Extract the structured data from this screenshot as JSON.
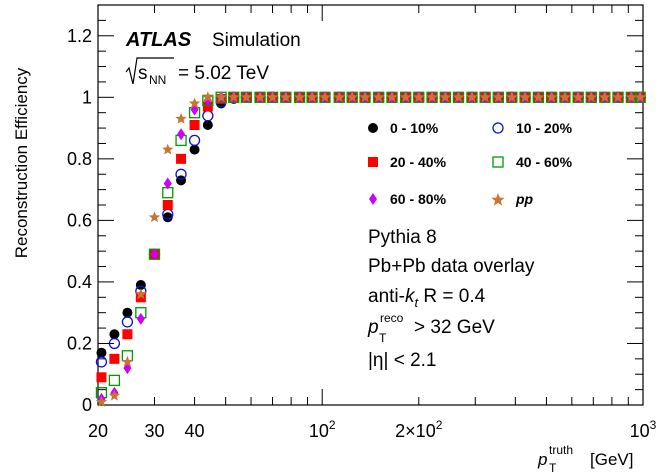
{
  "chart_data": {
    "type": "scatter",
    "x_scale": "log",
    "xlim": [
      20,
      1000
    ],
    "ylim": [
      0,
      1.3
    ],
    "xlabel_main": "p",
    "xlabel_sup": "truth",
    "xlabel_sub": "T",
    "xlabel_unit": "[GeV]",
    "ylabel": "Reconstruction Efficiency",
    "x_ticks": [
      {
        "value": 20,
        "label": "20"
      },
      {
        "value": 30,
        "label": "30"
      },
      {
        "value": 40,
        "label": "40"
      },
      {
        "value": 100,
        "label": "10",
        "sup": "2"
      },
      {
        "value": 200,
        "label": "2×10",
        "sup": "2"
      },
      {
        "value": 1000,
        "label": "10",
        "sup": "3"
      }
    ],
    "y_ticks": [
      {
        "value": 0,
        "label": "0"
      },
      {
        "value": 0.2,
        "label": "0.2"
      },
      {
        "value": 0.4,
        "label": "0.4"
      },
      {
        "value": 0.6,
        "label": "0.6"
      },
      {
        "value": 0.8,
        "label": "0.8"
      },
      {
        "value": 1.0,
        "label": "1"
      },
      {
        "value": 1.2,
        "label": "1.2"
      }
    ],
    "x": [
      20.5,
      22.5,
      24.7,
      27.2,
      30.0,
      33.0,
      36.3,
      40.0,
      44.0,
      48.4,
      53.0,
      58.0,
      64.0,
      70.0,
      77.0,
      85.0,
      93.0,
      102.0,
      113.0,
      124.0,
      136.0,
      150.0,
      165.0,
      182.0,
      200.0,
      220.0,
      242.0,
      266.0,
      293.0,
      322.0,
      354.0,
      390.0,
      429.0,
      472.0,
      519.0,
      571.0,
      628.0,
      690.0,
      760.0,
      836.0,
      920.0,
      980.0
    ],
    "series": [
      {
        "name": "0 - 10%",
        "marker": "circle-filled",
        "color": "#000000",
        "values": [
          0.17,
          0.23,
          0.3,
          0.39,
          0.49,
          0.61,
          0.73,
          0.83,
          0.91,
          0.98,
          0.995,
          1.0,
          1.0,
          1.0,
          1.0,
          1.0,
          1.0,
          1.0,
          1.0,
          1.0,
          1.0,
          1.0,
          1.0,
          1.0,
          1.0,
          1.0,
          1.0,
          1.0,
          1.0,
          1.0,
          1.0,
          1.0,
          1.0,
          1.0,
          1.0,
          1.0,
          1.0,
          1.0,
          1.0,
          1.0,
          1.0,
          1.0
        ]
      },
      {
        "name": "10 - 20%",
        "marker": "circle-open",
        "color": "#1010cc",
        "values": [
          0.14,
          0.2,
          0.27,
          0.37,
          0.49,
          0.62,
          0.75,
          0.86,
          0.94,
          0.985,
          1.0,
          1.0,
          1.0,
          1.0,
          1.0,
          1.0,
          1.0,
          1.0,
          1.0,
          1.0,
          1.0,
          1.0,
          1.0,
          1.0,
          1.0,
          1.0,
          1.0,
          1.0,
          1.0,
          1.0,
          1.0,
          1.0,
          1.0,
          1.0,
          1.0,
          1.0,
          1.0,
          1.0,
          1.0,
          1.0,
          1.0,
          1.0
        ]
      },
      {
        "name": "20 - 40%",
        "marker": "square-filled",
        "color": "#ff0000",
        "values": [
          0.09,
          0.15,
          0.23,
          0.35,
          0.49,
          0.65,
          0.8,
          0.91,
          0.97,
          0.995,
          1.0,
          1.0,
          1.0,
          1.0,
          1.0,
          1.0,
          1.0,
          1.0,
          1.0,
          1.0,
          1.0,
          1.0,
          1.0,
          1.0,
          1.0,
          1.0,
          1.0,
          1.0,
          1.0,
          1.0,
          1.0,
          1.0,
          1.0,
          1.0,
          1.0,
          1.0,
          1.0,
          1.0,
          1.0,
          1.0,
          1.0,
          1.0
        ]
      },
      {
        "name": "40 - 60%",
        "marker": "square-open",
        "color": "#009900",
        "values": [
          0.04,
          0.08,
          0.16,
          0.3,
          0.49,
          0.69,
          0.86,
          0.95,
          0.99,
          1.0,
          1.0,
          1.0,
          1.0,
          1.0,
          1.0,
          1.0,
          1.0,
          1.0,
          1.0,
          1.0,
          1.0,
          1.0,
          1.0,
          1.0,
          1.0,
          1.0,
          1.0,
          1.0,
          1.0,
          1.0,
          1.0,
          1.0,
          1.0,
          1.0,
          1.0,
          1.0,
          1.0,
          1.0,
          1.0,
          1.0,
          1.0,
          1.0
        ]
      },
      {
        "name": "60 - 80%",
        "marker": "diamond-filled",
        "color": "#cc00ff",
        "values": [
          0.02,
          0.04,
          0.12,
          0.28,
          0.49,
          0.72,
          0.88,
          0.96,
          0.99,
          1.0,
          1.0,
          1.0,
          1.0,
          1.0,
          1.0,
          1.0,
          1.0,
          1.0,
          1.0,
          1.0,
          1.0,
          1.0,
          1.0,
          1.0,
          1.0,
          1.0,
          1.0,
          1.0,
          1.0,
          1.0,
          1.0,
          1.0,
          1.0,
          1.0,
          1.0,
          1.0,
          1.0,
          1.0,
          1.0,
          1.0,
          1.0,
          1.0
        ]
      },
      {
        "name": "pp",
        "marker": "star",
        "color": "#c87530",
        "values": [
          0.01,
          0.03,
          0.14,
          0.36,
          0.61,
          0.83,
          0.93,
          0.98,
          1.0,
          1.0,
          1.0,
          1.0,
          1.0,
          1.0,
          1.0,
          1.0,
          1.0,
          1.0,
          1.0,
          1.0,
          1.0,
          1.0,
          1.0,
          1.0,
          1.0,
          1.0,
          1.0,
          1.0,
          1.0,
          1.0,
          1.0,
          1.0,
          1.0,
          1.0,
          1.0,
          1.0,
          1.0,
          1.0,
          1.0,
          1.0,
          1.0,
          1.0
        ]
      }
    ],
    "legend_position": "center-right"
  },
  "annotations": {
    "atlas": "ATLAS",
    "simulation": "Simulation",
    "sqrt_s": "s",
    "sqrt_s_sub": "NN",
    "energy": "= 5.02 TeV",
    "generator": "Pythia 8",
    "overlay": "Pb+Pb data overlay",
    "algo_prefix": "anti-",
    "algo_k": "k",
    "algo_sub": "t",
    "algo_suffix": " R = 0.4",
    "reco_p": "p",
    "reco_sup": "reco",
    "reco_sub": "T",
    "reco_cut": "> 32 GeV",
    "eta_cut": "|η| < 2.1"
  }
}
